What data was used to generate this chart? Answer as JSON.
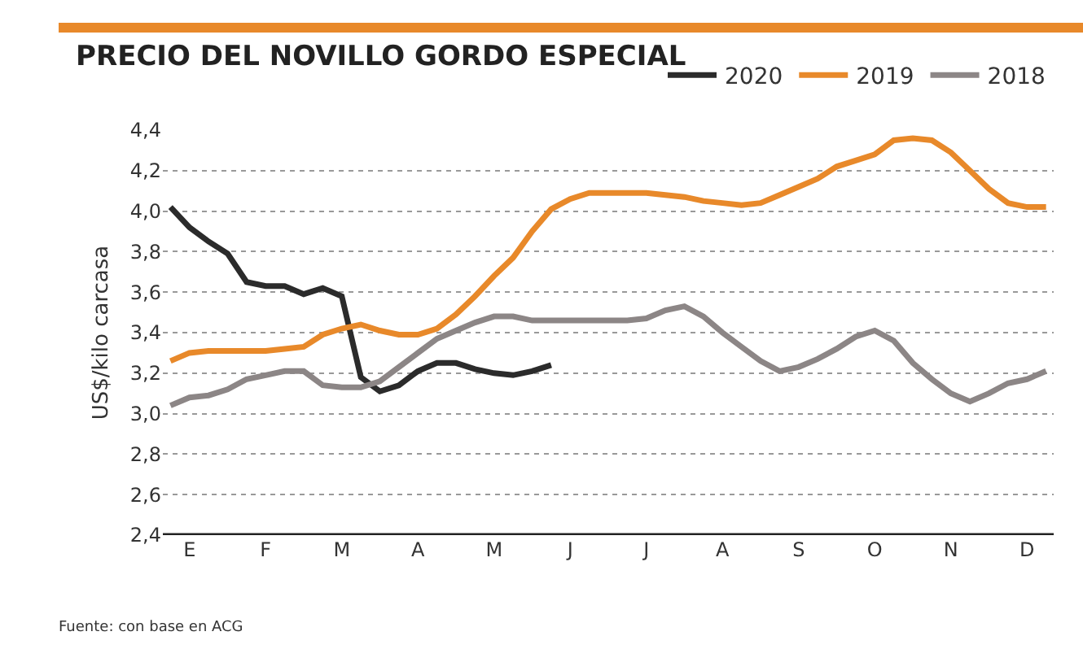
{
  "chart_data": {
    "type": "line",
    "title": "PRECIO DEL NOVILLO GORDO ESPECIAL",
    "ylabel": "US$/kilo carcasa",
    "annotations": [
      "Fuente: con base en ACG"
    ],
    "categories": [
      null,
      "E",
      null,
      null,
      null,
      "F",
      null,
      null,
      null,
      "M",
      null,
      null,
      null,
      "A",
      null,
      null,
      null,
      "M",
      null,
      null,
      null,
      "J",
      null,
      null,
      null,
      "J",
      null,
      null,
      null,
      "A",
      null,
      null,
      null,
      "S",
      null,
      null,
      null,
      "O",
      null,
      null,
      null,
      "N",
      null,
      null,
      null,
      "D",
      null
    ],
    "ylim": [
      2.4,
      4.4
    ],
    "yticks": [
      {
        "value": 2.4,
        "label": "2,4"
      },
      {
        "value": 2.6,
        "label": "2,6"
      },
      {
        "value": 2.8,
        "label": "2,8"
      },
      {
        "value": 3.0,
        "label": "3,0"
      },
      {
        "value": 3.2,
        "label": "3,2"
      },
      {
        "value": 3.4,
        "label": "3,4"
      },
      {
        "value": 3.6,
        "label": "3,6"
      },
      {
        "value": 3.8,
        "label": "3,8"
      },
      {
        "value": 4.0,
        "label": "4,0"
      },
      {
        "value": 4.2,
        "label": "4,2"
      },
      {
        "value": 4.4,
        "label": "4,4"
      }
    ],
    "grid": "y",
    "legend": "top right",
    "line_style": "solid",
    "marker": "none",
    "series": [
      {
        "name": "2020",
        "color": "#2b2b2b",
        "values": [
          4.02,
          3.92,
          3.85,
          3.79,
          3.65,
          3.63,
          3.63,
          3.59,
          3.62,
          3.58,
          3.18,
          3.11,
          3.14,
          3.21,
          3.25,
          3.25,
          3.22,
          3.2,
          3.19,
          3.21,
          3.24,
          null,
          null,
          null,
          null,
          null,
          null,
          null,
          null,
          null,
          null,
          null,
          null,
          null,
          null,
          null,
          null,
          null,
          null,
          null,
          null,
          null,
          null,
          null,
          null,
          null,
          null
        ]
      },
      {
        "name": "2019",
        "color": "#e8892a",
        "values": [
          3.26,
          3.3,
          3.31,
          3.31,
          3.31,
          3.31,
          3.32,
          3.33,
          3.39,
          3.42,
          3.44,
          3.41,
          3.39,
          3.39,
          3.42,
          3.49,
          3.58,
          3.68,
          3.77,
          3.9,
          4.01,
          4.06,
          4.09,
          4.09,
          4.09,
          4.09,
          4.08,
          4.07,
          4.05,
          4.04,
          4.03,
          4.04,
          4.08,
          4.12,
          4.16,
          4.22,
          4.25,
          4.28,
          4.35,
          4.36,
          4.35,
          4.29,
          4.2,
          4.11,
          4.04,
          4.02,
          4.02
        ]
      },
      {
        "name": "2018",
        "color": "#8c8686",
        "values": [
          3.04,
          3.08,
          3.09,
          3.12,
          3.17,
          3.19,
          3.21,
          3.21,
          3.14,
          3.13,
          3.13,
          3.16,
          3.23,
          3.3,
          3.37,
          3.41,
          3.45,
          3.48,
          3.48,
          3.46,
          3.46,
          3.46,
          3.46,
          3.46,
          3.46,
          3.47,
          3.51,
          3.53,
          3.48,
          3.4,
          3.33,
          3.26,
          3.21,
          3.23,
          3.27,
          3.32,
          3.38,
          3.41,
          3.36,
          3.25,
          3.17,
          3.1,
          3.06,
          3.1,
          3.15,
          3.17,
          3.21
        ]
      }
    ]
  }
}
